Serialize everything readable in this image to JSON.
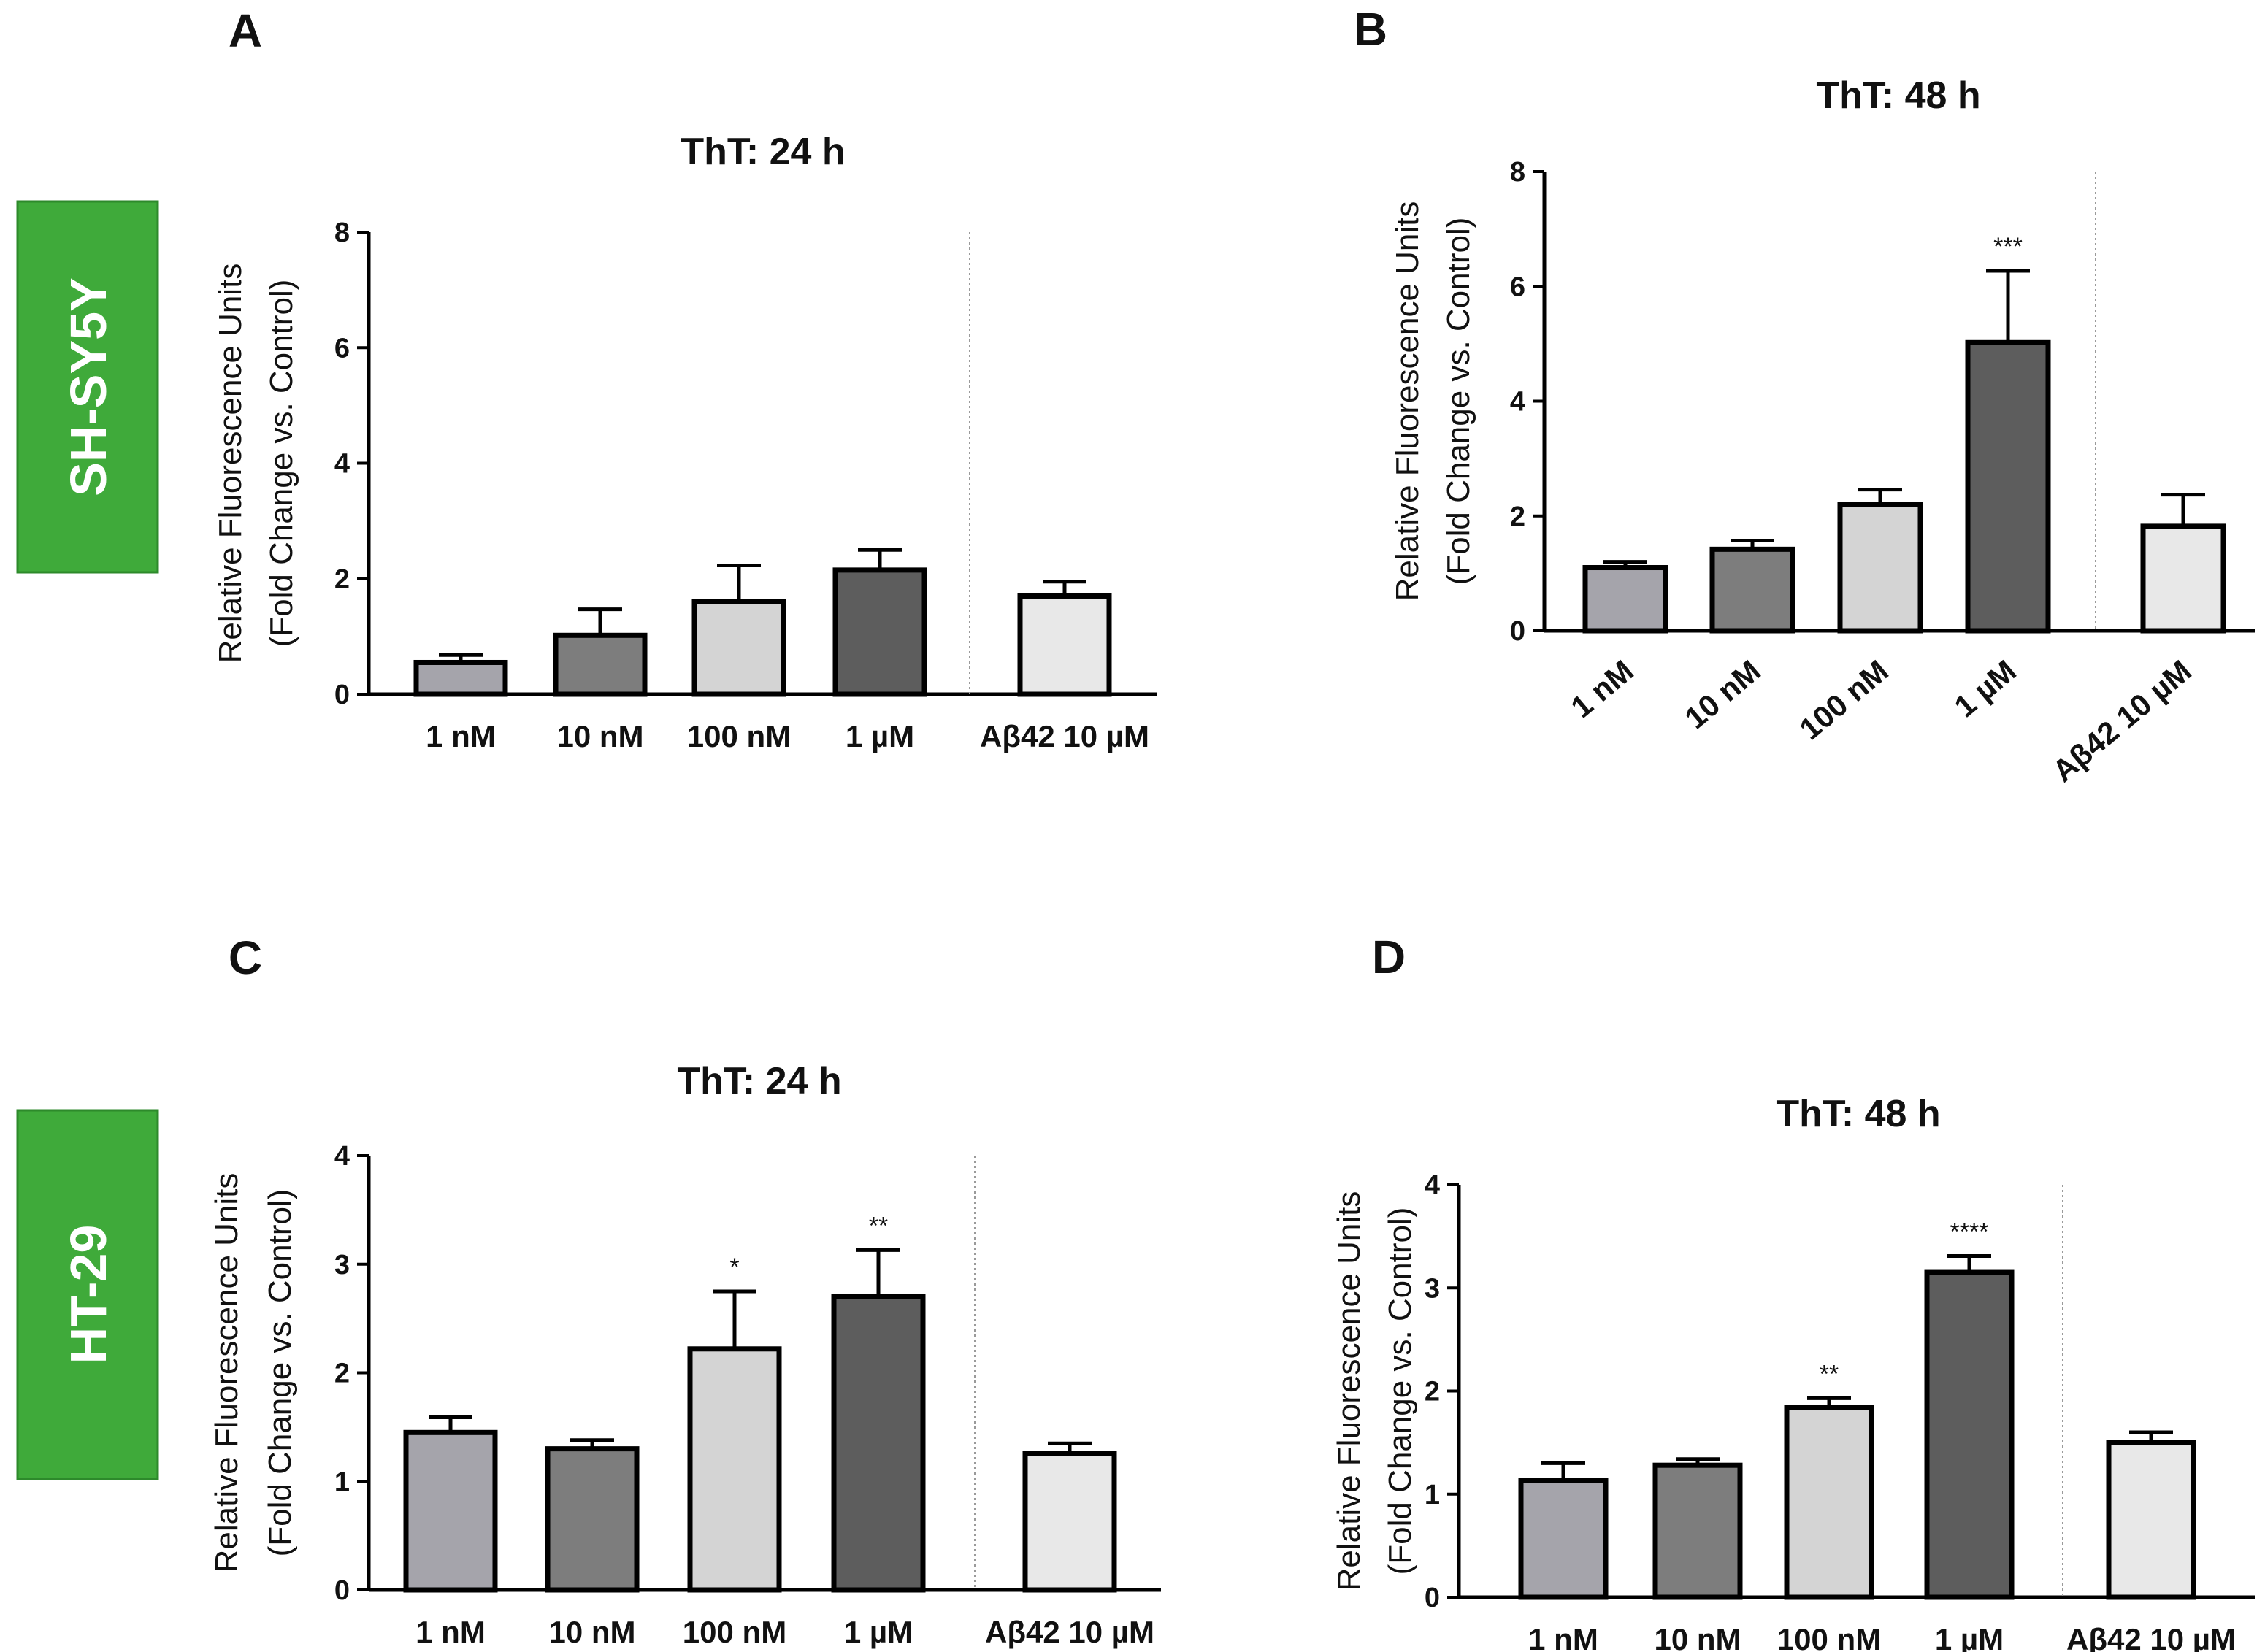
{
  "colors": {
    "cell_box": "#3faa3a",
    "cell_box_border": "#2d8a2b",
    "bar_outline": "#000000"
  },
  "cell_lines": [
    {
      "label": "SH-SY5Y"
    },
    {
      "label": "HT-29"
    }
  ],
  "chart_data": [
    {
      "panel": "A",
      "type": "bar",
      "title": "ThT: 24 h",
      "ylabel_line1": "Relative Fluorescence Units",
      "ylabel_line2": "(Fold Change vs. Control)",
      "ylim": [
        0,
        8
      ],
      "yticks": [
        0,
        2,
        4,
        6,
        8
      ],
      "categories": [
        "1 nM",
        "10 nM",
        "100 nM",
        "1 µM",
        "Aβ42 10 µM"
      ],
      "values": [
        0.55,
        1.02,
        1.6,
        2.15,
        1.7
      ],
      "errors": [
        0.13,
        0.45,
        0.63,
        0.35,
        0.25
      ],
      "significance": [
        "",
        "",
        "",
        "",
        ""
      ],
      "bar_colors": [
        "#a5a4ab",
        "#7d7d7d",
        "#d4d4d4",
        "#5d5d5d",
        "#e8e8e8"
      ],
      "rotated_labels": false,
      "grid": false
    },
    {
      "panel": "B",
      "type": "bar",
      "title": "ThT: 48 h",
      "ylabel_line1": "Relative Fluorescence Units",
      "ylabel_line2": "(Fold Change vs. Control)",
      "ylim": [
        0,
        8
      ],
      "yticks": [
        0,
        2,
        4,
        6,
        8
      ],
      "categories": [
        "1 nM",
        "10 nM",
        "100 nM",
        "1 µM",
        "Aβ42 10 µM"
      ],
      "values": [
        1.1,
        1.42,
        2.2,
        5.02,
        1.82
      ],
      "errors": [
        0.1,
        0.15,
        0.26,
        1.25,
        0.55
      ],
      "significance": [
        "",
        "",
        "",
        "***",
        ""
      ],
      "bar_colors": [
        "#a5a4ab",
        "#7d7d7d",
        "#d4d4d4",
        "#5d5d5d",
        "#e8e8e8"
      ],
      "rotated_labels": true,
      "grid": false
    },
    {
      "panel": "C",
      "type": "bar",
      "title": "ThT: 24 h",
      "ylabel_line1": "Relative Fluorescence Units",
      "ylabel_line2": "(Fold Change vs. Control)",
      "ylim": [
        0,
        4
      ],
      "yticks": [
        0,
        1,
        2,
        3,
        4
      ],
      "categories": [
        "1 nM",
        "10 nM",
        "100 nM",
        "1 µM",
        "Aβ42 10 µM"
      ],
      "values": [
        1.45,
        1.3,
        2.22,
        2.7,
        1.26
      ],
      "errors": [
        0.14,
        0.08,
        0.53,
        0.43,
        0.09
      ],
      "significance": [
        "",
        "",
        "*",
        "**",
        ""
      ],
      "bar_colors": [
        "#a5a4ab",
        "#7d7d7d",
        "#d4d4d4",
        "#5d5d5d",
        "#e8e8e8"
      ],
      "rotated_labels": false,
      "grid": false
    },
    {
      "panel": "D",
      "type": "bar",
      "title": "ThT: 48 h",
      "ylabel_line1": "Relative Fluorescence Units",
      "ylabel_line2": "(Fold Change vs. Control)",
      "ylim": [
        0,
        4
      ],
      "yticks": [
        0,
        1,
        2,
        3,
        4
      ],
      "categories": [
        "1 nM",
        "10 nM",
        "100 nM",
        "1 µM",
        "Aβ42 10 µM"
      ],
      "values": [
        1.13,
        1.28,
        1.84,
        3.15,
        1.5
      ],
      "errors": [
        0.17,
        0.06,
        0.09,
        0.16,
        0.1
      ],
      "significance": [
        "",
        "",
        "**",
        "****",
        ""
      ],
      "bar_colors": [
        "#a5a4ab",
        "#7d7d7d",
        "#d4d4d4",
        "#5d5d5d",
        "#e8e8e8"
      ],
      "rotated_labels": false,
      "grid": false
    }
  ]
}
